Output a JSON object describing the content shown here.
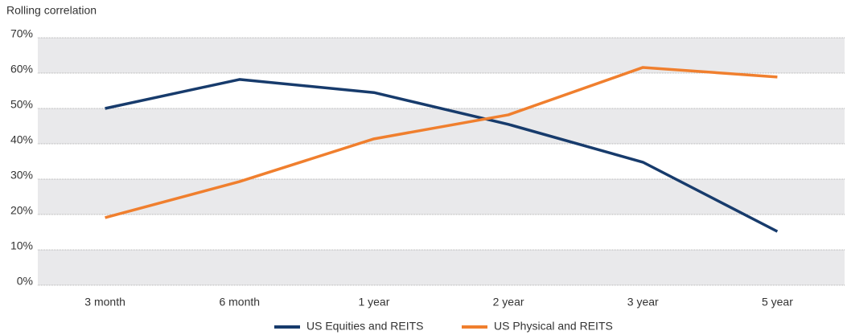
{
  "chart_data": {
    "type": "line",
    "y_axis_label": "Rolling correlation",
    "categories": [
      "3 month",
      "6 month",
      "1 year",
      "2 year",
      "3 year",
      "5 year"
    ],
    "series": [
      {
        "name": "US Equities and REITS",
        "color": "#173b6c",
        "values": [
          50,
          58.2,
          54.5,
          45.5,
          34.8,
          15.2
        ]
      },
      {
        "name": "US Physical and REITS",
        "color": "#f07f2e",
        "values": [
          19.1,
          29.3,
          41.4,
          48.2,
          61.6,
          58.9
        ]
      }
    ],
    "ylim": [
      0,
      70
    ],
    "yticks": [
      {
        "value": 0,
        "label": "0%"
      },
      {
        "value": 10,
        "label": "10%"
      },
      {
        "value": 20,
        "label": "20%"
      },
      {
        "value": 30,
        "label": "30%"
      },
      {
        "value": 40,
        "label": "40%"
      },
      {
        "value": 50,
        "label": "50%"
      },
      {
        "value": 60,
        "label": "60%"
      },
      {
        "value": 70,
        "label": "70%"
      }
    ],
    "grid": true,
    "legend": "bottom"
  }
}
